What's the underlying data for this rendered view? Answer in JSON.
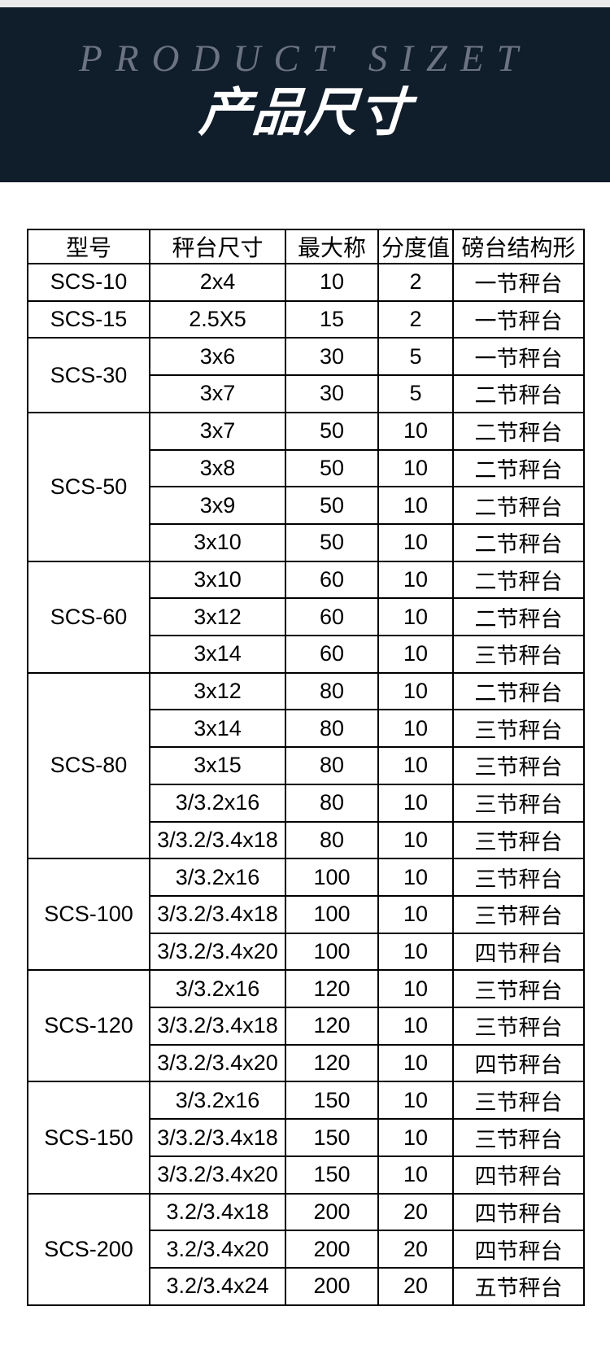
{
  "header": {
    "title_en": "PRODUCT SIZET",
    "title_cn": "产品尺寸",
    "bg_color": "#101d2b",
    "title_en_color": "#6b7480",
    "title_cn_color": "#ffffff"
  },
  "table": {
    "columns": [
      "型号",
      "秤台尺寸",
      "最大称",
      "分度值",
      "磅台结构形"
    ],
    "groups": [
      {
        "model": "SCS-10",
        "rows": [
          [
            "2x4",
            "10",
            "2",
            "一节秤台"
          ]
        ]
      },
      {
        "model": "SCS-15",
        "rows": [
          [
            "2.5X5",
            "15",
            "2",
            "一节秤台"
          ]
        ]
      },
      {
        "model": "SCS-30",
        "rows": [
          [
            "3x6",
            "30",
            "5",
            "一节秤台"
          ],
          [
            "3x7",
            "30",
            "5",
            "二节秤台"
          ]
        ]
      },
      {
        "model": "SCS-50",
        "rows": [
          [
            "3x7",
            "50",
            "10",
            "二节秤台"
          ],
          [
            "3x8",
            "50",
            "10",
            "二节秤台"
          ],
          [
            "3x9",
            "50",
            "10",
            "二节秤台"
          ],
          [
            "3x10",
            "50",
            "10",
            "二节秤台"
          ]
        ]
      },
      {
        "model": "SCS-60",
        "rows": [
          [
            "3x10",
            "60",
            "10",
            "二节秤台"
          ],
          [
            "3x12",
            "60",
            "10",
            "二节秤台"
          ],
          [
            "3x14",
            "60",
            "10",
            "三节秤台"
          ]
        ]
      },
      {
        "model": "SCS-80",
        "rows": [
          [
            "3x12",
            "80",
            "10",
            "二节秤台"
          ],
          [
            "3x14",
            "80",
            "10",
            "三节秤台"
          ],
          [
            "3x15",
            "80",
            "10",
            "三节秤台"
          ],
          [
            "3/3.2x16",
            "80",
            "10",
            "三节秤台"
          ],
          [
            "3/3.2/3.4x18",
            "80",
            "10",
            "三节秤台"
          ]
        ]
      },
      {
        "model": "SCS-100",
        "rows": [
          [
            "3/3.2x16",
            "100",
            "10",
            "三节秤台"
          ],
          [
            "3/3.2/3.4x18",
            "100",
            "10",
            "三节秤台"
          ],
          [
            "3/3.2/3.4x20",
            "100",
            "10",
            "四节秤台"
          ]
        ]
      },
      {
        "model": "SCS-120",
        "rows": [
          [
            "3/3.2x16",
            "120",
            "10",
            "三节秤台"
          ],
          [
            "3/3.2/3.4x18",
            "120",
            "10",
            "三节秤台"
          ],
          [
            "3/3.2/3.4x20",
            "120",
            "10",
            "四节秤台"
          ]
        ]
      },
      {
        "model": "SCS-150",
        "rows": [
          [
            "3/3.2x16",
            "150",
            "10",
            "三节秤台"
          ],
          [
            "3/3.2/3.4x18",
            "150",
            "10",
            "三节秤台"
          ],
          [
            "3/3.2/3.4x20",
            "150",
            "10",
            "四节秤台"
          ]
        ]
      },
      {
        "model": "SCS-200",
        "rows": [
          [
            "3.2/3.4x18",
            "200",
            "20",
            "四节秤台"
          ],
          [
            "3.2/3.4x20",
            "200",
            "20",
            "四节秤台"
          ],
          [
            "3.2/3.4x24",
            "200",
            "20",
            "五节秤台"
          ]
        ]
      }
    ]
  }
}
